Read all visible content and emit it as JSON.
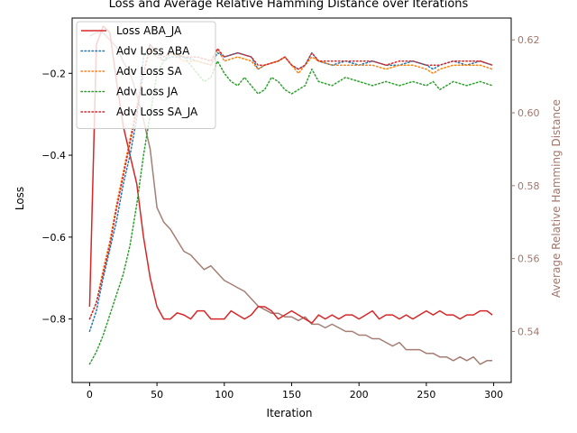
{
  "chart_data": {
    "type": "line",
    "title": "Loss and Average Relative Hamming Distance over Iterations",
    "xlabel": "Iteration",
    "ylabel": "Loss",
    "y2label": "Average Relative Hamming Distance",
    "xlim": [
      -13,
      313
    ],
    "ylim": [
      -0.955,
      -0.065
    ],
    "y2lim": [
      0.526,
      0.626
    ],
    "xticks": [
      0,
      50,
      100,
      150,
      200,
      250,
      300
    ],
    "yticks": [
      -0.8,
      -0.6,
      -0.4,
      -0.2
    ],
    "y2ticks": [
      0.54,
      0.56,
      0.58,
      0.6,
      0.62
    ],
    "legend_position": "upper-left",
    "series": [
      {
        "name": "Loss ABA_JA",
        "axis": "left",
        "color": "#d62728",
        "style": "solid",
        "points": [
          [
            0,
            -0.77
          ],
          [
            5,
            -0.13
          ],
          [
            10,
            -0.085
          ],
          [
            15,
            -0.1
          ],
          [
            20,
            -0.22
          ],
          [
            25,
            -0.33
          ],
          [
            30,
            -0.4
          ],
          [
            35,
            -0.47
          ],
          [
            40,
            -0.6
          ],
          [
            45,
            -0.7
          ],
          [
            50,
            -0.77
          ],
          [
            55,
            -0.8
          ],
          [
            60,
            -0.8
          ],
          [
            65,
            -0.785
          ],
          [
            70,
            -0.79
          ],
          [
            75,
            -0.8
          ],
          [
            80,
            -0.78
          ],
          [
            85,
            -0.78
          ],
          [
            90,
            -0.8
          ],
          [
            95,
            -0.8
          ],
          [
            100,
            -0.8
          ],
          [
            105,
            -0.78
          ],
          [
            110,
            -0.79
          ],
          [
            115,
            -0.8
          ],
          [
            120,
            -0.79
          ],
          [
            125,
            -0.77
          ],
          [
            130,
            -0.77
          ],
          [
            135,
            -0.78
          ],
          [
            140,
            -0.8
          ],
          [
            145,
            -0.79
          ],
          [
            150,
            -0.78
          ],
          [
            155,
            -0.79
          ],
          [
            160,
            -0.8
          ],
          [
            165,
            -0.81
          ],
          [
            170,
            -0.79
          ],
          [
            175,
            -0.8
          ],
          [
            180,
            -0.79
          ],
          [
            185,
            -0.8
          ],
          [
            190,
            -0.79
          ],
          [
            195,
            -0.79
          ],
          [
            200,
            -0.8
          ],
          [
            205,
            -0.79
          ],
          [
            210,
            -0.78
          ],
          [
            215,
            -0.8
          ],
          [
            220,
            -0.79
          ],
          [
            225,
            -0.79
          ],
          [
            230,
            -0.8
          ],
          [
            235,
            -0.79
          ],
          [
            240,
            -0.8
          ],
          [
            245,
            -0.79
          ],
          [
            250,
            -0.78
          ],
          [
            255,
            -0.79
          ],
          [
            260,
            -0.78
          ],
          [
            265,
            -0.79
          ],
          [
            270,
            -0.79
          ],
          [
            275,
            -0.8
          ],
          [
            280,
            -0.79
          ],
          [
            285,
            -0.79
          ],
          [
            290,
            -0.78
          ],
          [
            295,
            -0.78
          ],
          [
            299,
            -0.79
          ]
        ]
      },
      {
        "name": "Adv Loss ABA",
        "axis": "left",
        "color": "#1f77b4",
        "style": "dotted",
        "points": [
          [
            0,
            -0.83
          ],
          [
            5,
            -0.78
          ],
          [
            10,
            -0.7
          ],
          [
            15,
            -0.63
          ],
          [
            20,
            -0.56
          ],
          [
            25,
            -0.47
          ],
          [
            30,
            -0.4
          ],
          [
            35,
            -0.31
          ],
          [
            38,
            -0.22
          ],
          [
            40,
            -0.16
          ],
          [
            45,
            -0.13
          ],
          [
            50,
            -0.15
          ],
          [
            55,
            -0.17
          ],
          [
            60,
            -0.16
          ],
          [
            70,
            -0.16
          ],
          [
            80,
            -0.17
          ],
          [
            90,
            -0.18
          ],
          [
            95,
            -0.15
          ],
          [
            100,
            -0.16
          ],
          [
            110,
            -0.15
          ],
          [
            120,
            -0.16
          ],
          [
            125,
            -0.19
          ],
          [
            130,
            -0.18
          ],
          [
            140,
            -0.17
          ],
          [
            145,
            -0.16
          ],
          [
            150,
            -0.18
          ],
          [
            155,
            -0.19
          ],
          [
            160,
            -0.18
          ],
          [
            165,
            -0.15
          ],
          [
            170,
            -0.17
          ],
          [
            180,
            -0.18
          ],
          [
            190,
            -0.17
          ],
          [
            200,
            -0.18
          ],
          [
            210,
            -0.17
          ],
          [
            220,
            -0.18
          ],
          [
            230,
            -0.18
          ],
          [
            240,
            -0.17
          ],
          [
            250,
            -0.18
          ],
          [
            255,
            -0.19
          ],
          [
            260,
            -0.18
          ],
          [
            270,
            -0.17
          ],
          [
            280,
            -0.18
          ],
          [
            290,
            -0.17
          ],
          [
            299,
            -0.18
          ]
        ]
      },
      {
        "name": "Adv Loss SA",
        "axis": "left",
        "color": "#ff7f0e",
        "style": "dotted",
        "points": [
          [
            0,
            -0.8
          ],
          [
            5,
            -0.76
          ],
          [
            10,
            -0.68
          ],
          [
            15,
            -0.61
          ],
          [
            20,
            -0.52
          ],
          [
            25,
            -0.44
          ],
          [
            30,
            -0.36
          ],
          [
            35,
            -0.28
          ],
          [
            40,
            -0.2
          ],
          [
            45,
            -0.14
          ],
          [
            50,
            -0.16
          ],
          [
            55,
            -0.17
          ],
          [
            60,
            -0.15
          ],
          [
            70,
            -0.17
          ],
          [
            80,
            -0.17
          ],
          [
            90,
            -0.18
          ],
          [
            95,
            -0.14
          ],
          [
            100,
            -0.17
          ],
          [
            110,
            -0.16
          ],
          [
            120,
            -0.17
          ],
          [
            125,
            -0.19
          ],
          [
            130,
            -0.18
          ],
          [
            140,
            -0.17
          ],
          [
            145,
            -0.16
          ],
          [
            150,
            -0.18
          ],
          [
            155,
            -0.2
          ],
          [
            160,
            -0.18
          ],
          [
            165,
            -0.16
          ],
          [
            170,
            -0.17
          ],
          [
            180,
            -0.18
          ],
          [
            190,
            -0.18
          ],
          [
            200,
            -0.18
          ],
          [
            210,
            -0.18
          ],
          [
            220,
            -0.19
          ],
          [
            230,
            -0.18
          ],
          [
            240,
            -0.18
          ],
          [
            250,
            -0.19
          ],
          [
            255,
            -0.2
          ],
          [
            260,
            -0.19
          ],
          [
            270,
            -0.18
          ],
          [
            280,
            -0.18
          ],
          [
            290,
            -0.18
          ],
          [
            299,
            -0.19
          ]
        ]
      },
      {
        "name": "Adv Loss JA",
        "axis": "left",
        "color": "#2ca02c",
        "style": "dotted",
        "points": [
          [
            0,
            -0.91
          ],
          [
            5,
            -0.88
          ],
          [
            10,
            -0.84
          ],
          [
            15,
            -0.79
          ],
          [
            20,
            -0.74
          ],
          [
            25,
            -0.69
          ],
          [
            30,
            -0.62
          ],
          [
            35,
            -0.52
          ],
          [
            40,
            -0.4
          ],
          [
            45,
            -0.3
          ],
          [
            50,
            -0.2
          ],
          [
            55,
            -0.17
          ],
          [
            60,
            -0.15
          ],
          [
            70,
            -0.16
          ],
          [
            80,
            -0.2
          ],
          [
            85,
            -0.22
          ],
          [
            90,
            -0.21
          ],
          [
            95,
            -0.17
          ],
          [
            100,
            -0.2
          ],
          [
            105,
            -0.22
          ],
          [
            110,
            -0.23
          ],
          [
            115,
            -0.21
          ],
          [
            120,
            -0.23
          ],
          [
            125,
            -0.25
          ],
          [
            130,
            -0.24
          ],
          [
            135,
            -0.21
          ],
          [
            140,
            -0.22
          ],
          [
            145,
            -0.24
          ],
          [
            150,
            -0.25
          ],
          [
            155,
            -0.24
          ],
          [
            160,
            -0.23
          ],
          [
            165,
            -0.19
          ],
          [
            170,
            -0.22
          ],
          [
            180,
            -0.23
          ],
          [
            190,
            -0.21
          ],
          [
            200,
            -0.22
          ],
          [
            210,
            -0.23
          ],
          [
            220,
            -0.22
          ],
          [
            230,
            -0.23
          ],
          [
            240,
            -0.22
          ],
          [
            250,
            -0.23
          ],
          [
            255,
            -0.22
          ],
          [
            260,
            -0.24
          ],
          [
            270,
            -0.22
          ],
          [
            280,
            -0.23
          ],
          [
            290,
            -0.22
          ],
          [
            299,
            -0.23
          ]
        ]
      },
      {
        "name": "Adv Loss SA_JA",
        "axis": "left",
        "color": "#d62728",
        "style": "dotted",
        "points": [
          [
            0,
            -0.8
          ],
          [
            5,
            -0.76
          ],
          [
            10,
            -0.69
          ],
          [
            15,
            -0.62
          ],
          [
            20,
            -0.53
          ],
          [
            25,
            -0.45
          ],
          [
            30,
            -0.37
          ],
          [
            35,
            -0.29
          ],
          [
            40,
            -0.2
          ],
          [
            45,
            -0.13
          ],
          [
            50,
            -0.15
          ],
          [
            55,
            -0.16
          ],
          [
            60,
            -0.15
          ],
          [
            70,
            -0.16
          ],
          [
            80,
            -0.16
          ],
          [
            90,
            -0.17
          ],
          [
            95,
            -0.14
          ],
          [
            100,
            -0.16
          ],
          [
            110,
            -0.15
          ],
          [
            120,
            -0.16
          ],
          [
            125,
            -0.18
          ],
          [
            130,
            -0.18
          ],
          [
            140,
            -0.17
          ],
          [
            145,
            -0.16
          ],
          [
            150,
            -0.18
          ],
          [
            155,
            -0.19
          ],
          [
            160,
            -0.18
          ],
          [
            165,
            -0.15
          ],
          [
            170,
            -0.17
          ],
          [
            180,
            -0.17
          ],
          [
            190,
            -0.17
          ],
          [
            200,
            -0.17
          ],
          [
            210,
            -0.17
          ],
          [
            220,
            -0.18
          ],
          [
            230,
            -0.17
          ],
          [
            240,
            -0.17
          ],
          [
            250,
            -0.18
          ],
          [
            255,
            -0.18
          ],
          [
            260,
            -0.18
          ],
          [
            270,
            -0.17
          ],
          [
            280,
            -0.17
          ],
          [
            290,
            -0.17
          ],
          [
            299,
            -0.18
          ]
        ]
      },
      {
        "name": "",
        "axis": "right",
        "color": "#a0776d",
        "style": "solid",
        "points": [
          [
            0,
            0.621
          ],
          [
            5,
            0.622
          ],
          [
            10,
            0.622
          ],
          [
            15,
            0.62
          ],
          [
            20,
            0.618
          ],
          [
            25,
            0.614
          ],
          [
            30,
            0.611
          ],
          [
            35,
            0.605
          ],
          [
            40,
            0.598
          ],
          [
            45,
            0.59
          ],
          [
            50,
            0.574
          ],
          [
            55,
            0.57
          ],
          [
            60,
            0.568
          ],
          [
            65,
            0.565
          ],
          [
            70,
            0.562
          ],
          [
            75,
            0.561
          ],
          [
            80,
            0.559
          ],
          [
            85,
            0.557
          ],
          [
            90,
            0.558
          ],
          [
            95,
            0.556
          ],
          [
            100,
            0.554
          ],
          [
            105,
            0.553
          ],
          [
            110,
            0.552
          ],
          [
            115,
            0.551
          ],
          [
            120,
            0.549
          ],
          [
            125,
            0.547
          ],
          [
            130,
            0.546
          ],
          [
            135,
            0.545
          ],
          [
            140,
            0.545
          ],
          [
            145,
            0.544
          ],
          [
            150,
            0.544
          ],
          [
            155,
            0.543
          ],
          [
            160,
            0.544
          ],
          [
            165,
            0.542
          ],
          [
            170,
            0.542
          ],
          [
            175,
            0.541
          ],
          [
            180,
            0.542
          ],
          [
            185,
            0.541
          ],
          [
            190,
            0.54
          ],
          [
            195,
            0.54
          ],
          [
            200,
            0.539
          ],
          [
            205,
            0.539
          ],
          [
            210,
            0.538
          ],
          [
            215,
            0.538
          ],
          [
            220,
            0.537
          ],
          [
            225,
            0.536
          ],
          [
            230,
            0.537
          ],
          [
            235,
            0.535
          ],
          [
            240,
            0.535
          ],
          [
            245,
            0.535
          ],
          [
            250,
            0.534
          ],
          [
            255,
            0.534
          ],
          [
            260,
            0.533
          ],
          [
            265,
            0.533
          ],
          [
            270,
            0.532
          ],
          [
            275,
            0.533
          ],
          [
            280,
            0.532
          ],
          [
            285,
            0.533
          ],
          [
            290,
            0.531
          ],
          [
            295,
            0.532
          ],
          [
            299,
            0.532
          ]
        ]
      }
    ]
  }
}
